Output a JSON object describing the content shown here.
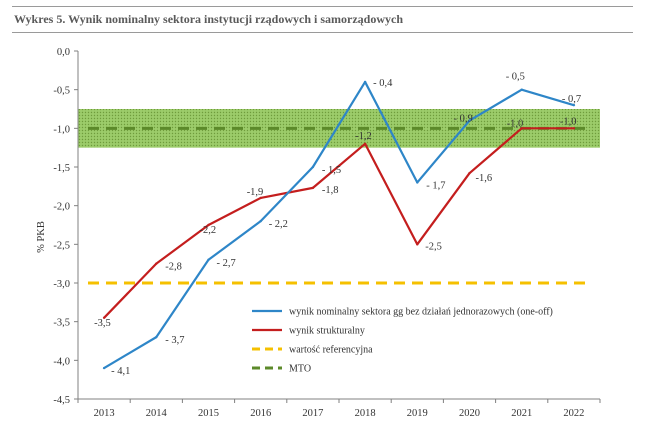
{
  "title": "Wykres 5. Wynik nominalny sektora instytucji rządowych i samorządowych",
  "chart_data": {
    "type": "line",
    "ylabel": "% PKB",
    "xlabel": "",
    "ylim": [
      -4.5,
      0.0
    ],
    "yticks": [
      0.0,
      -0.5,
      -1.0,
      -1.5,
      -2.0,
      -2.5,
      -3.0,
      -3.5,
      -4.0,
      -4.5
    ],
    "ytick_labels": [
      "0,0",
      "-0,5",
      "-1,0",
      "-1,5",
      "-2,0",
      "-2,5",
      "-3,0",
      "-3,5",
      "-4,0",
      "-4,5"
    ],
    "categories": [
      "2013",
      "2014",
      "2015",
      "2016",
      "2017",
      "2018",
      "2019",
      "2020",
      "2021",
      "2022"
    ],
    "mto_band": [
      -1.25,
      -0.75
    ],
    "series": [
      {
        "name": "wynik nominalny sektora gg  bez  działań jednorazowych (one-off)",
        "color": "#2e86c8",
        "style": "solid",
        "values": [
          -4.1,
          -3.7,
          -2.7,
          -2.2,
          -1.5,
          -0.4,
          -1.7,
          -0.9,
          -0.5,
          -0.7
        ],
        "labels": [
          "- 4,1",
          "- 3,7",
          "- 2,7",
          "- 2,2",
          "- 1,5",
          "- 0,4",
          "- 1,7",
          "- 0,9",
          "- 0,5",
          "- 0,7"
        ]
      },
      {
        "name": "wynik strukturalny",
        "color": "#c41e1e",
        "style": "solid",
        "values": [
          -3.45,
          -2.75,
          -2.25,
          -1.9,
          -1.77,
          -1.2,
          -2.5,
          -1.58,
          -1.0,
          -1.0
        ],
        "labels": [
          "-3,5",
          "-2,8",
          "-2,2",
          "-1,9",
          "-1,8",
          "-1,2",
          "-2,5",
          "-1,6",
          "-1,0",
          ""
        ]
      },
      {
        "name": "wartość referencyjna",
        "color": "#f5c000",
        "style": "dashed",
        "values": [
          -3.0,
          -3.0,
          -3.0,
          -3.0,
          -3.0,
          -3.0,
          -3.0,
          -3.0,
          -3.0,
          -3.0
        ],
        "labels": []
      },
      {
        "name": "MTO",
        "color": "#5c8a2a",
        "style": "dashed",
        "values": [
          -1.0,
          -1.0,
          -1.0,
          -1.0,
          -1.0,
          -1.0,
          -1.0,
          -1.0,
          -1.0,
          -1.0
        ],
        "labels": [
          "",
          "",
          "",
          "",
          "",
          "",
          "",
          "",
          "",
          "-1,0"
        ]
      }
    ],
    "legend_position": "bottom-right"
  }
}
